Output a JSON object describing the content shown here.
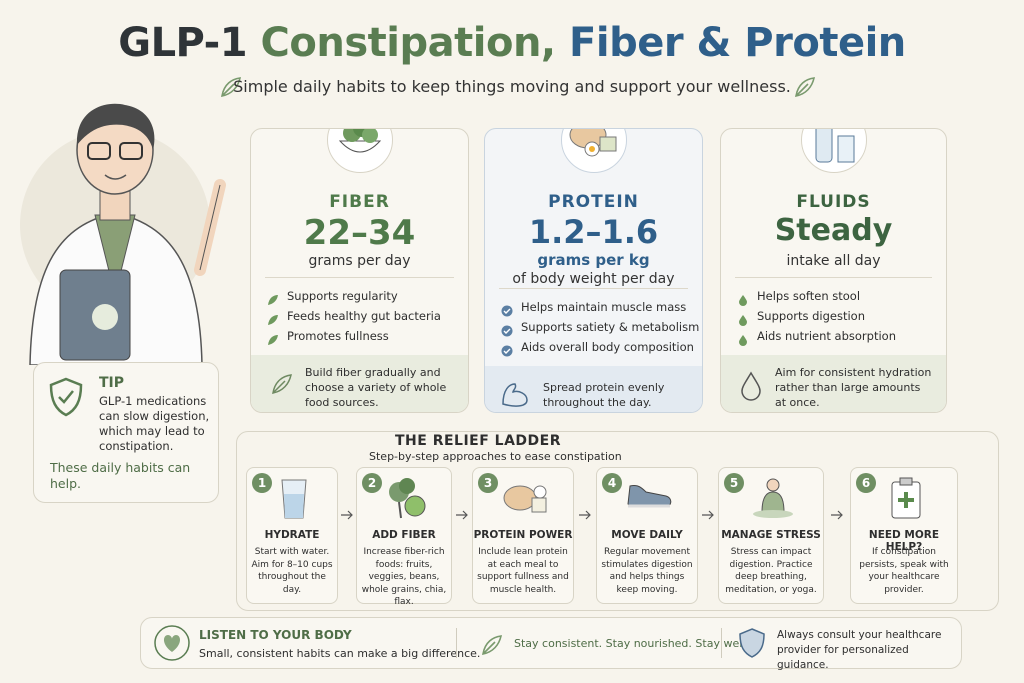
{
  "header": {
    "title": [
      "GLP-1",
      "Constipation,",
      "Fiber & Protein"
    ],
    "subtitle": "Simple daily habits to keep things moving and support your wellness."
  },
  "tip": {
    "label": "TIP",
    "text": "GLP-1 medications can slow digestion, which may lead to constipation.",
    "note": "These daily habits can help."
  },
  "cards": [
    {
      "heading": "FIBER",
      "value": "22–34",
      "unit": [
        "grams per day"
      ],
      "bullets": [
        "Supports regularity",
        "Feeds healthy gut bacteria",
        "Promotes fullness"
      ],
      "note": "Build fiber gradually and choose a variety of whole food sources."
    },
    {
      "heading": "PROTEIN",
      "value": "1.2–1.6",
      "unit": [
        "grams per kg",
        "of body weight per day"
      ],
      "bullets": [
        "Helps maintain muscle mass",
        "Supports satiety & metabolism",
        "Aids overall body composition"
      ],
      "note": "Spread protein evenly throughout the day."
    },
    {
      "heading": "FLUIDS",
      "value": "Steady",
      "unit": [
        "intake all day"
      ],
      "bullets": [
        "Helps soften stool",
        "Supports digestion",
        "Aids nutrient absorption"
      ],
      "note": "Aim for consistent hydration rather than large amounts at once."
    }
  ],
  "ladder": {
    "title": "THE RELIEF LADDER",
    "subtitle": "Step-by-step approaches to ease constipation",
    "steps": [
      {
        "number": 1,
        "title": "HYDRATE",
        "text": "Start with water. Aim for 8–10 cups throughout the day."
      },
      {
        "number": 2,
        "title": "ADD FIBER",
        "text": "Increase fiber-rich foods: fruits, veggies, beans, whole grains, chia, flax."
      },
      {
        "number": 3,
        "title": "PROTEIN POWER",
        "text": "Include lean protein at each meal to support fullness and muscle health."
      },
      {
        "number": 4,
        "title": "MOVE DAILY",
        "text": "Regular movement stimulates digestion and helps things keep moving."
      },
      {
        "number": 5,
        "title": "MANAGE STRESS",
        "text": "Stress can impact digestion. Practice deep breathing, meditation, or yoga."
      },
      {
        "number": 6,
        "title": "NEED MORE HELP?",
        "text": "If constipation persists, speak with your healthcare provider."
      }
    ]
  },
  "footer": {
    "title": "LISTEN TO YOUR BODY",
    "text": "Small, consistent habits can make a big difference.",
    "middle": "Stay consistent. Stay nourished. Stay well.",
    "right": "Always consult your healthcare provider for personalized guidance."
  }
}
